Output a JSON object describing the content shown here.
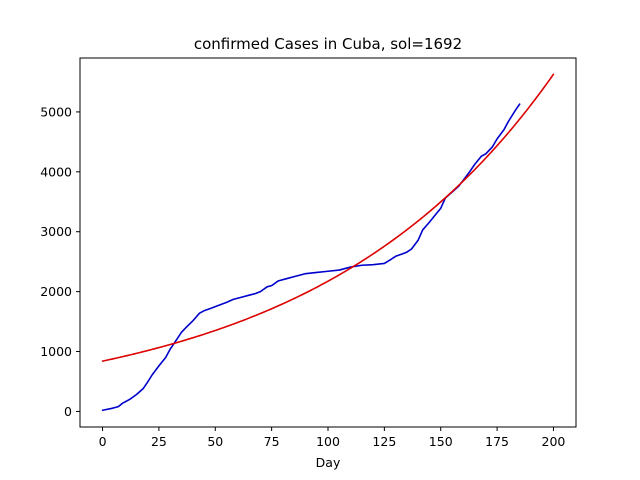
{
  "chart_data": {
    "type": "line",
    "title": "confirmed Cases in Cuba, sol=1692",
    "xlabel": "Day",
    "ylabel": "",
    "xlim": [
      -10,
      210
    ],
    "ylim": [
      -260,
      5900
    ],
    "x_ticks": [
      0,
      25,
      50,
      75,
      100,
      125,
      150,
      175,
      200
    ],
    "y_ticks": [
      0,
      1000,
      2000,
      3000,
      4000,
      5000
    ],
    "grid": false,
    "series": [
      {
        "color": "#0000cc",
        "x": [
          0,
          4,
          7,
          9,
          12,
          15,
          18,
          20,
          22,
          25,
          28,
          30,
          32,
          35,
          37,
          40,
          43,
          45,
          48,
          50,
          55,
          58,
          62,
          65,
          68,
          70,
          73,
          75,
          78,
          82,
          85,
          88,
          90,
          95,
          100,
          105,
          110,
          115,
          120,
          125,
          128,
          130,
          133,
          135,
          137,
          140,
          142,
          145,
          148,
          150,
          152,
          155,
          158,
          160,
          163,
          165,
          168,
          170,
          173,
          175,
          178,
          180,
          183,
          185
        ],
        "y": [
          20,
          50,
          80,
          140,
          200,
          280,
          380,
          490,
          610,
          760,
          900,
          1040,
          1150,
          1320,
          1400,
          1510,
          1640,
          1680,
          1720,
          1750,
          1820,
          1870,
          1910,
          1940,
          1970,
          2000,
          2080,
          2100,
          2180,
          2220,
          2250,
          2280,
          2300,
          2320,
          2340,
          2360,
          2410,
          2440,
          2450,
          2470,
          2540,
          2590,
          2630,
          2660,
          2710,
          2860,
          3030,
          3160,
          3300,
          3390,
          3560,
          3660,
          3760,
          3860,
          4010,
          4120,
          4260,
          4300,
          4420,
          4550,
          4700,
          4840,
          5020,
          5130
        ]
      },
      {
        "color": "#dd0000",
        "function": "840 * exp(0.00951 * x)",
        "x_range": [
          0,
          200
        ]
      }
    ]
  }
}
